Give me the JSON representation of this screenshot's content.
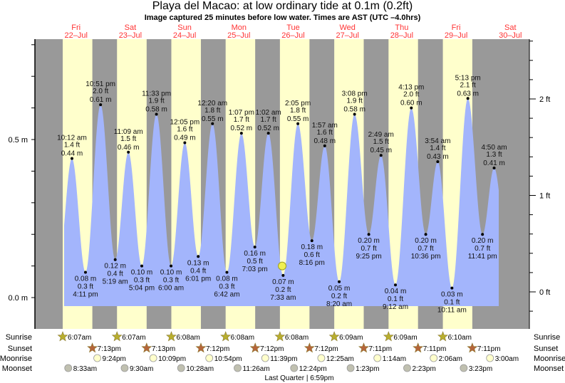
{
  "header": {
    "title": "Playa del Macao: at low  ordinary tide at 0.1m (0.2ft)",
    "subtitle": "Image captured 25 minutes before low water. Times are AST (UTC –4.0hrs)"
  },
  "chart_data": {
    "type": "area",
    "title": "Playa del Macao: at low  ordinary tide at 0.1m (0.2ft)",
    "days": [
      {
        "dow": "Fri",
        "date": "22–Jul"
      },
      {
        "dow": "Sat",
        "date": "23–Jul"
      },
      {
        "dow": "Sun",
        "date": "24–Jul"
      },
      {
        "dow": "Mon",
        "date": "25–Jul"
      },
      {
        "dow": "Tue",
        "date": "26–Jul"
      },
      {
        "dow": "Wed",
        "date": "27–Jul"
      },
      {
        "dow": "Thu",
        "date": "28–Jul"
      },
      {
        "dow": "Fri",
        "date": "29–Jul"
      },
      {
        "dow": "Sat",
        "date": "30–Jul"
      }
    ],
    "left_axis": {
      "unit": "m",
      "ticks": [
        "0.0 m",
        "0.5 m"
      ],
      "range_m": [
        -0.03,
        0.82
      ]
    },
    "right_axis": {
      "unit": "ft",
      "ticks": [
        "0 ft",
        "1 ft",
        "2 ft"
      ]
    },
    "current": {
      "day": 26,
      "time": "7:08 am",
      "height_m": 0.1
    },
    "extremes": [
      {
        "day": 22,
        "time": "10:12 am",
        "m": 0.44,
        "ft": 1.4,
        "type": "high"
      },
      {
        "day": 22,
        "time": "4:11 pm",
        "m": 0.08,
        "ft": 0.3,
        "type": "low"
      },
      {
        "day": 22,
        "time": "10:51 pm",
        "m": 0.61,
        "ft": 2.0,
        "type": "high"
      },
      {
        "day": 23,
        "time": "5:19 am",
        "m": 0.12,
        "ft": 0.4,
        "type": "low"
      },
      {
        "day": 23,
        "time": "11:09 am",
        "m": 0.46,
        "ft": 1.5,
        "type": "high"
      },
      {
        "day": 23,
        "time": "5:04 pm",
        "m": 0.1,
        "ft": 0.3,
        "type": "low"
      },
      {
        "day": 23,
        "time": "11:33 pm",
        "m": 0.58,
        "ft": 1.9,
        "type": "high"
      },
      {
        "day": 24,
        "time": "6:00 am",
        "m": 0.1,
        "ft": 0.3,
        "type": "low"
      },
      {
        "day": 24,
        "time": "12:05 pm",
        "m": 0.49,
        "ft": 1.6,
        "type": "high"
      },
      {
        "day": 24,
        "time": "6:01 pm",
        "m": 0.13,
        "ft": 0.4,
        "type": "low"
      },
      {
        "day": 25,
        "time": "12:20 am",
        "m": 0.55,
        "ft": 1.8,
        "type": "high"
      },
      {
        "day": 25,
        "time": "6:42 am",
        "m": 0.08,
        "ft": 0.3,
        "type": "low"
      },
      {
        "day": 25,
        "time": "1:07 pm",
        "m": 0.52,
        "ft": 1.7,
        "type": "high"
      },
      {
        "day": 25,
        "time": "7:03 pm",
        "m": 0.16,
        "ft": 0.5,
        "type": "low"
      },
      {
        "day": 26,
        "time": "1:02 am",
        "m": 0.52,
        "ft": 1.7,
        "type": "high"
      },
      {
        "day": 26,
        "time": "7:33 am",
        "m": 0.07,
        "ft": 0.2,
        "type": "low"
      },
      {
        "day": 26,
        "time": "2:05 pm",
        "m": 0.55,
        "ft": 1.8,
        "type": "high"
      },
      {
        "day": 26,
        "time": "8:16 pm",
        "m": 0.18,
        "ft": 0.6,
        "type": "low"
      },
      {
        "day": 27,
        "time": "1:57 am",
        "m": 0.48,
        "ft": 1.6,
        "type": "high"
      },
      {
        "day": 27,
        "time": "8:20 am",
        "m": 0.05,
        "ft": 0.2,
        "type": "low"
      },
      {
        "day": 27,
        "time": "3:08 pm",
        "m": 0.58,
        "ft": 1.9,
        "type": "high"
      },
      {
        "day": 27,
        "time": "9:25 pm",
        "m": 0.2,
        "ft": 0.7,
        "type": "low"
      },
      {
        "day": 28,
        "time": "2:49 am",
        "m": 0.45,
        "ft": 1.5,
        "type": "high"
      },
      {
        "day": 28,
        "time": "9:12 am",
        "m": 0.04,
        "ft": 0.1,
        "type": "low"
      },
      {
        "day": 28,
        "time": "4:13 pm",
        "m": 0.6,
        "ft": 2.0,
        "type": "high"
      },
      {
        "day": 28,
        "time": "10:36 pm",
        "m": 0.2,
        "ft": 0.7,
        "type": "low"
      },
      {
        "day": 29,
        "time": "3:54 am",
        "m": 0.43,
        "ft": 1.4,
        "type": "high"
      },
      {
        "day": 29,
        "time": "10:11 am",
        "m": 0.03,
        "ft": 0.1,
        "type": "low"
      },
      {
        "day": 29,
        "time": "5:13 pm",
        "m": 0.63,
        "ft": 2.1,
        "type": "high"
      },
      {
        "day": 29,
        "time": "11:41 pm",
        "m": 0.2,
        "ft": 0.7,
        "type": "low"
      },
      {
        "day": 30,
        "time": "4:50 am",
        "m": 0.41,
        "ft": 1.3,
        "type": "high"
      }
    ],
    "colors": {
      "water": "#a3b5fc",
      "day": "#ffffcc",
      "night": "#999999",
      "day_label": "#ff3333",
      "sunrise": "#b8ae2e",
      "sunset": "#b5653a",
      "moonrise": "#ffffcc",
      "moonset": "#c0c0b0"
    }
  },
  "astro": {
    "row_labels": {
      "sunrise": "Sunrise",
      "sunset": "Sunset",
      "moonrise": "Moonrise",
      "moonset": "Moonset"
    },
    "sunrise": [
      {
        "day": 22,
        "time": "6:07am"
      },
      {
        "day": 23,
        "time": "6:07am"
      },
      {
        "day": 24,
        "time": "6:08am"
      },
      {
        "day": 25,
        "time": "6:08am"
      },
      {
        "day": 26,
        "time": "6:08am"
      },
      {
        "day": 27,
        "time": "6:09am"
      },
      {
        "day": 28,
        "time": "6:09am"
      },
      {
        "day": 29,
        "time": "6:10am"
      }
    ],
    "sunset": [
      {
        "day": 22,
        "time": "7:13pm"
      },
      {
        "day": 23,
        "time": "7:13pm"
      },
      {
        "day": 24,
        "time": "7:12pm"
      },
      {
        "day": 25,
        "time": "7:12pm"
      },
      {
        "day": 26,
        "time": "7:12pm"
      },
      {
        "day": 27,
        "time": "7:11pm"
      },
      {
        "day": 28,
        "time": "7:11pm"
      },
      {
        "day": 29,
        "time": "7:11pm"
      }
    ],
    "moonrise": [
      {
        "day": 22,
        "time": "9:24pm"
      },
      {
        "day": 23,
        "time": "10:09pm"
      },
      {
        "day": 24,
        "time": "10:54pm"
      },
      {
        "day": 25,
        "time": "11:39pm"
      },
      {
        "day": 27,
        "time": "12:25am"
      },
      {
        "day": 28,
        "time": "1:14am"
      },
      {
        "day": 29,
        "time": "2:06am"
      },
      {
        "day": 30,
        "time": "3:00am"
      }
    ],
    "moonset": [
      {
        "day": 22,
        "time": "8:33am"
      },
      {
        "day": 23,
        "time": "9:30am"
      },
      {
        "day": 24,
        "time": "10:28am"
      },
      {
        "day": 25,
        "time": "11:26am"
      },
      {
        "day": 26,
        "time": "12:24pm"
      },
      {
        "day": 27,
        "time": "1:23pm"
      },
      {
        "day": 28,
        "time": "2:23pm"
      },
      {
        "day": 29,
        "time": "3:23pm"
      }
    ],
    "moon_phase": "Last Quarter | 6:59pm"
  }
}
